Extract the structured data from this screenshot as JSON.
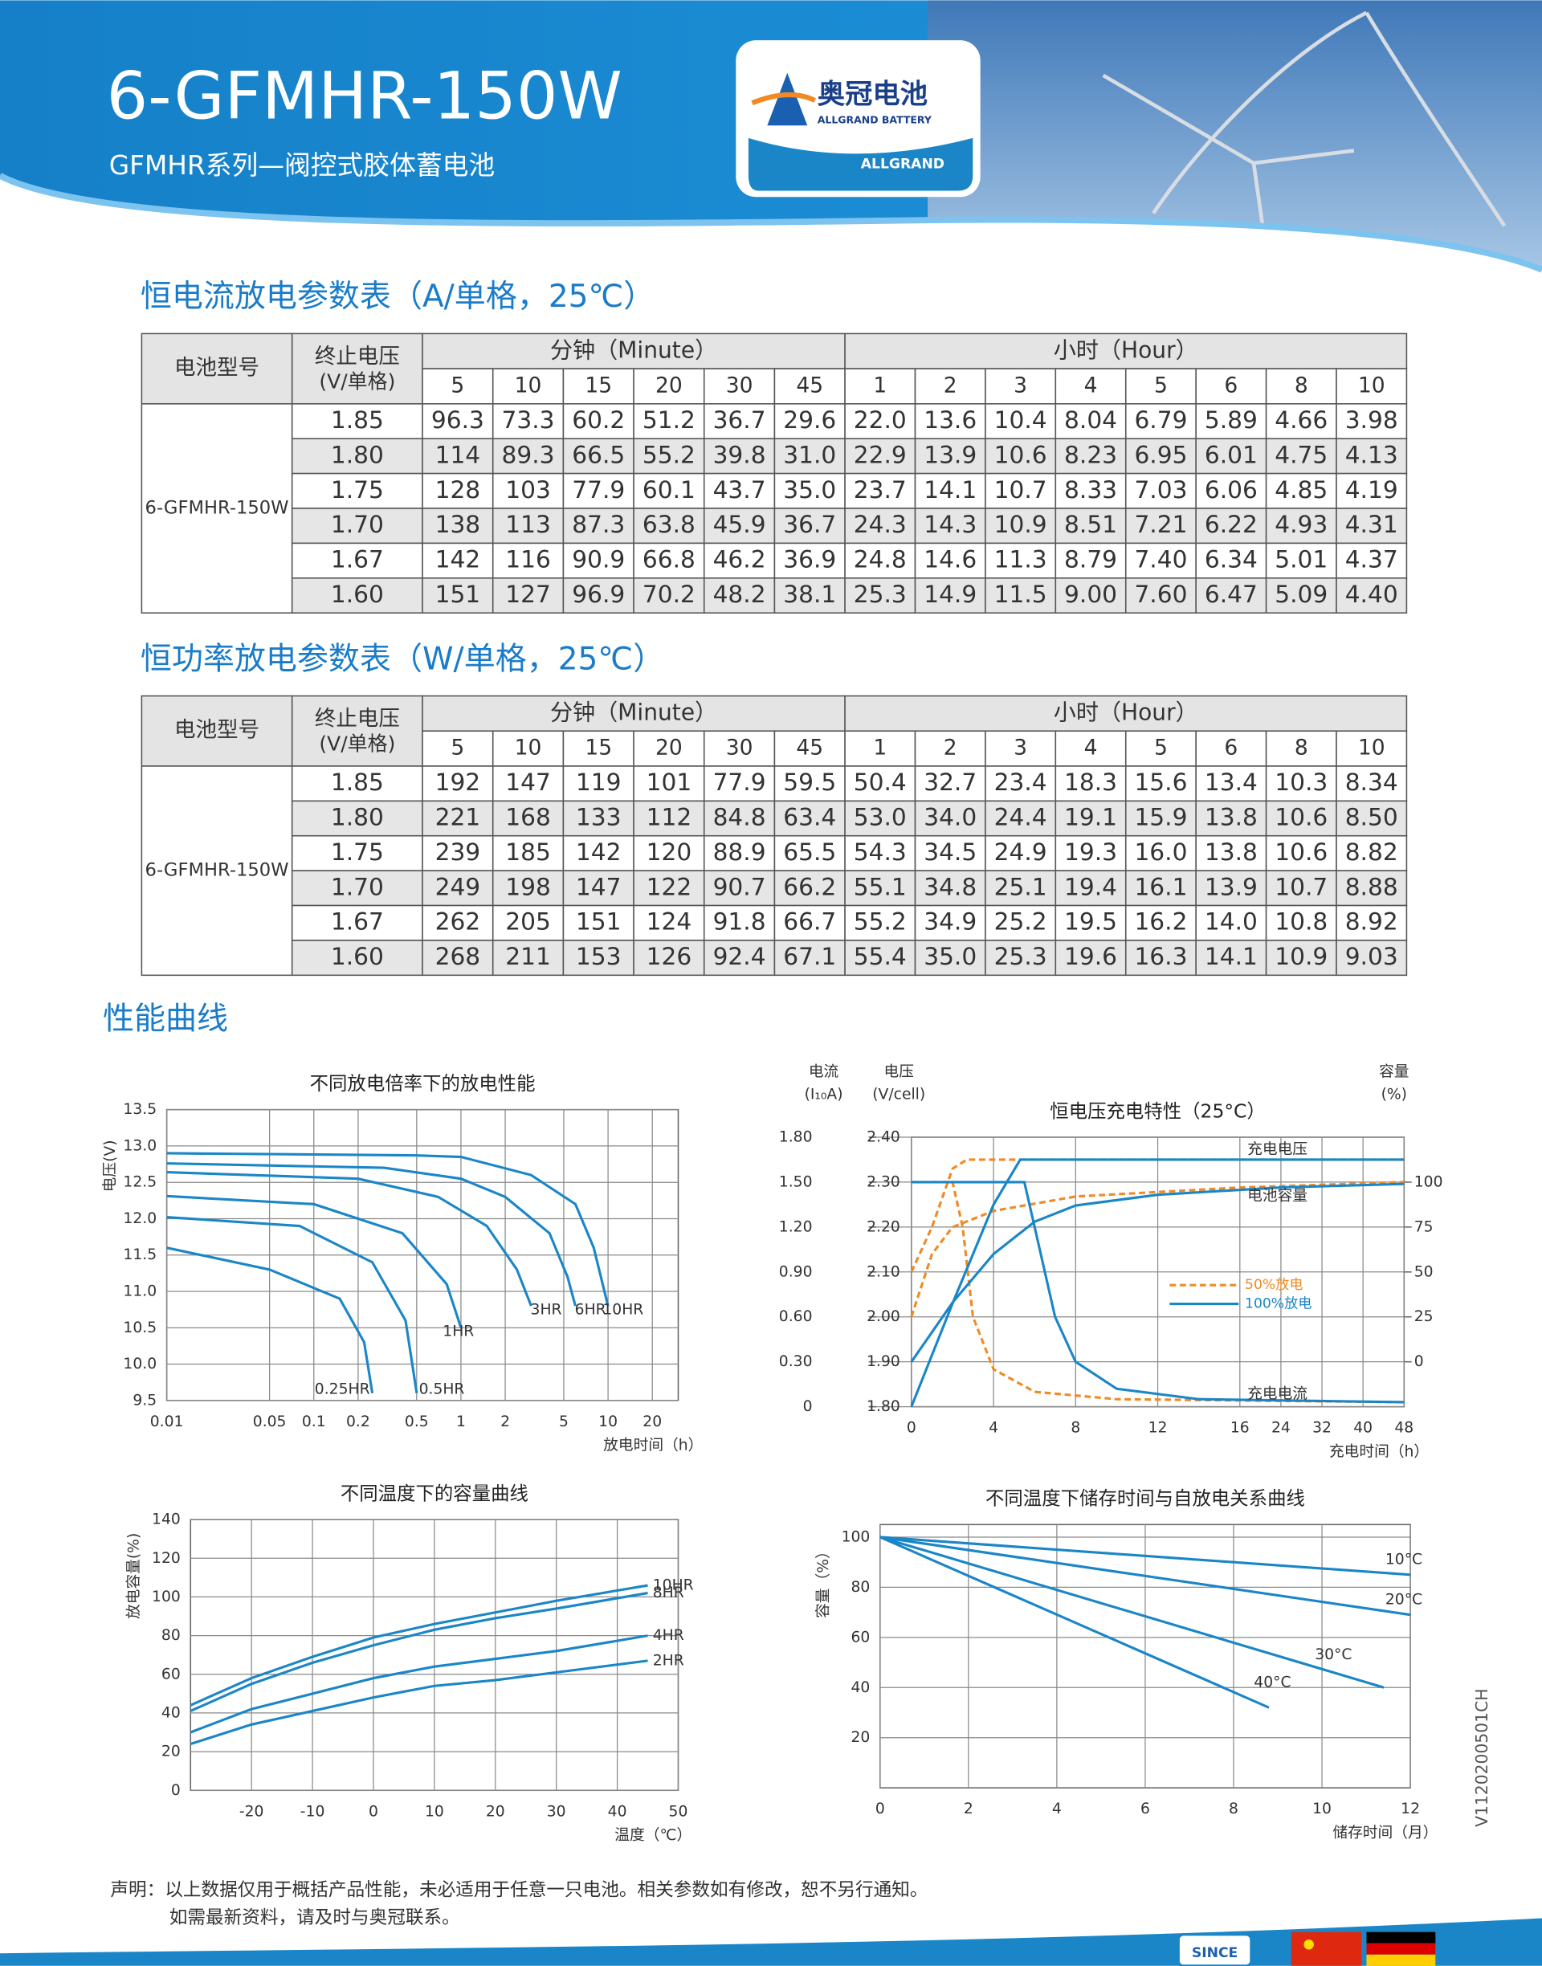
{
  "header": {
    "title": "6-GFMHR-150W",
    "subtitle": "GFMHR系列—阀控式胶体蓄电池",
    "logo_cn": "奥冠电池",
    "logo_en": "ALLGRAND BATTERY",
    "logo_badge": "ALLGRAND"
  },
  "tables": [
    {
      "title": "恒电流放电参数表（A/单格，25℃）",
      "model_header": "电池型号",
      "voltage_header": [
        "终止电压",
        "(V/单格)"
      ],
      "minute_header": "分钟（Minute）",
      "hour_header": "小时（Hour）",
      "minute_cols": [
        5,
        10,
        15,
        20,
        30,
        45
      ],
      "hour_cols": [
        1,
        2,
        3,
        4,
        5,
        6,
        8,
        10
      ],
      "model": "6-GFMHR-150W",
      "rows": [
        {
          "voltage": "1.85",
          "values": [
            "96.3",
            "73.3",
            "60.2",
            "51.2",
            "36.7",
            "29.6",
            "22.0",
            "13.6",
            "10.4",
            "8.04",
            "6.79",
            "5.89",
            "4.66",
            "3.98"
          ]
        },
        {
          "voltage": "1.80",
          "values": [
            "114",
            "89.3",
            "66.5",
            "55.2",
            "39.8",
            "31.0",
            "22.9",
            "13.9",
            "10.6",
            "8.23",
            "6.95",
            "6.01",
            "4.75",
            "4.13"
          ]
        },
        {
          "voltage": "1.75",
          "values": [
            "128",
            "103",
            "77.9",
            "60.1",
            "43.7",
            "35.0",
            "23.7",
            "14.1",
            "10.7",
            "8.33",
            "7.03",
            "6.06",
            "4.85",
            "4.19"
          ]
        },
        {
          "voltage": "1.70",
          "values": [
            "138",
            "113",
            "87.3",
            "63.8",
            "45.9",
            "36.7",
            "24.3",
            "14.3",
            "10.9",
            "8.51",
            "7.21",
            "6.22",
            "4.93",
            "4.31"
          ]
        },
        {
          "voltage": "1.67",
          "values": [
            "142",
            "116",
            "90.9",
            "66.8",
            "46.2",
            "36.9",
            "24.8",
            "14.6",
            "11.3",
            "8.79",
            "7.40",
            "6.34",
            "5.01",
            "4.37"
          ]
        },
        {
          "voltage": "1.60",
          "values": [
            "151",
            "127",
            "96.9",
            "70.2",
            "48.2",
            "38.1",
            "25.3",
            "14.9",
            "11.5",
            "9.00",
            "7.60",
            "6.47",
            "5.09",
            "4.40"
          ]
        }
      ]
    },
    {
      "title": "恒功率放电参数表（W/单格，25℃）",
      "model_header": "电池型号",
      "voltage_header": [
        "终止电压",
        "(V/单格)"
      ],
      "minute_header": "分钟（Minute）",
      "hour_header": "小时（Hour）",
      "minute_cols": [
        5,
        10,
        15,
        20,
        30,
        45
      ],
      "hour_cols": [
        1,
        2,
        3,
        4,
        5,
        6,
        8,
        10
      ],
      "model": "6-GFMHR-150W",
      "rows": [
        {
          "voltage": "1.85",
          "values": [
            "192",
            "147",
            "119",
            "101",
            "77.9",
            "59.5",
            "50.4",
            "32.7",
            "23.4",
            "18.3",
            "15.6",
            "13.4",
            "10.3",
            "8.34"
          ]
        },
        {
          "voltage": "1.80",
          "values": [
            "221",
            "168",
            "133",
            "112",
            "84.8",
            "63.4",
            "53.0",
            "34.0",
            "24.4",
            "19.1",
            "15.9",
            "13.8",
            "10.6",
            "8.50"
          ]
        },
        {
          "voltage": "1.75",
          "values": [
            "239",
            "185",
            "142",
            "120",
            "88.9",
            "65.5",
            "54.3",
            "34.5",
            "24.9",
            "19.3",
            "16.0",
            "13.8",
            "10.6",
            "8.82"
          ]
        },
        {
          "voltage": "1.70",
          "values": [
            "249",
            "198",
            "147",
            "122",
            "90.7",
            "66.2",
            "55.1",
            "34.8",
            "25.1",
            "19.4",
            "16.1",
            "13.9",
            "10.7",
            "8.88"
          ]
        },
        {
          "voltage": "1.67",
          "values": [
            "262",
            "205",
            "151",
            "124",
            "91.8",
            "66.7",
            "55.2",
            "34.9",
            "25.2",
            "19.5",
            "16.2",
            "14.0",
            "10.8",
            "8.92"
          ]
        },
        {
          "voltage": "1.60",
          "values": [
            "268",
            "211",
            "153",
            "126",
            "92.4",
            "67.1",
            "55.4",
            "35.0",
            "25.3",
            "19.6",
            "16.3",
            "14.1",
            "10.9",
            "9.03"
          ]
        }
      ]
    }
  ],
  "section_title": "性能曲线",
  "chart_data": [
    {
      "type": "line",
      "title": "不同放电倍率下的放电性能",
      "xlabel": "放电时间（h）",
      "ylabel": "电压(V)",
      "xscale": "log",
      "xlim": [
        0.01,
        30
      ],
      "xticks": [
        0.01,
        0.05,
        0.1,
        0.2,
        0.5,
        1,
        2,
        5,
        10,
        20
      ],
      "ylim": [
        9.5,
        13.5
      ],
      "yticks": [
        9.5,
        {
          "value": 10,
          "label": "10.0"
        },
        10.5,
        {
          "value": 11,
          "label": "11.0"
        },
        11.5,
        {
          "value": 12,
          "label": "12.0"
        },
        12.5,
        {
          "value": 13,
          "label": "13.0"
        },
        13.5
      ],
      "grid": true,
      "series": [
        {
          "name": "0.25HR",
          "color": "#1a86c8",
          "x": [
            0.01,
            0.05,
            0.15,
            0.22,
            0.25
          ],
          "values": [
            11.6,
            11.3,
            10.9,
            10.3,
            9.6
          ]
        },
        {
          "name": "0.5HR",
          "color": "#1a86c8",
          "x": [
            0.01,
            0.08,
            0.25,
            0.42,
            0.5
          ],
          "values": [
            12.02,
            11.9,
            11.4,
            10.6,
            9.6
          ]
        },
        {
          "name": "1HR",
          "color": "#1a86c8",
          "x": [
            0.01,
            0.1,
            0.4,
            0.8,
            1
          ],
          "values": [
            12.31,
            12.2,
            11.8,
            11.1,
            10.5
          ]
        },
        {
          "name": "3HR",
          "color": "#1a86c8",
          "x": [
            0.01,
            0.2,
            0.7,
            1.5,
            2.4,
            3
          ],
          "values": [
            12.64,
            12.55,
            12.3,
            11.9,
            11.3,
            10.8
          ]
        },
        {
          "name": "6HR",
          "color": "#1a86c8",
          "x": [
            0.01,
            0.3,
            1,
            2,
            4,
            5.3,
            6
          ],
          "values": [
            12.76,
            12.7,
            12.55,
            12.3,
            11.8,
            11.2,
            10.8
          ]
        },
        {
          "name": "10HR",
          "color": "#1a86c8",
          "x": [
            0.01,
            0.5,
            1,
            3,
            6,
            8,
            10
          ],
          "values": [
            12.9,
            12.87,
            12.85,
            12.6,
            12.2,
            11.6,
            10.8
          ]
        }
      ]
    },
    {
      "type": "line",
      "title": "恒电压充电特性（25°C）",
      "xlabel": "充电时间（h）",
      "ylabel": [
        "电流",
        "(I₁₀A)"
      ],
      "y2label": [
        "电压",
        "(V/cell)"
      ],
      "y3label": [
        "容量",
        "(%)"
      ],
      "xscale": "piecewise",
      "xlim": [
        0,
        48
      ],
      "xticks": [
        0,
        4,
        8,
        12,
        16,
        24,
        32,
        40,
        48
      ],
      "ylim": [
        0,
        1.8
      ],
      "yticks": [
        0,
        {
          "value": 0.3,
          "label": "0.30"
        },
        {
          "value": 0.6,
          "label": "0.60"
        },
        {
          "value": 0.9,
          "label": "0.90"
        },
        {
          "value": 1.2,
          "label": "1.20"
        },
        {
          "value": 1.5,
          "label": "1.50"
        },
        {
          "value": 1.8,
          "label": "1.80"
        }
      ],
      "y2lim": [
        1.8,
        2.4
      ],
      "y2ticks": [
        {
          "value": 1.8,
          "label": "1.80"
        },
        {
          "value": 1.9,
          "label": "1.90"
        },
        {
          "value": 2,
          "label": "2.00"
        },
        {
          "value": 2.1,
          "label": "2.10"
        },
        {
          "value": 2.2,
          "label": "2.20"
        },
        {
          "value": 2.3,
          "label": "2.30"
        },
        {
          "value": 2.4,
          "label": "2.40"
        }
      ],
      "y3lim": [
        -25,
        125
      ],
      "y3ticks": [
        0,
        25,
        50,
        75,
        100
      ],
      "grid": true,
      "annotations": [
        "充电电压",
        "电池容量",
        "充电电流"
      ],
      "series": [
        {
          "name": "50%放电",
          "color": "#f08a24",
          "dash": true,
          "lines": [
            {
              "axis": "y2",
              "x": [
                0,
                1,
                2,
                2.7,
                48
              ],
              "values": [
                2.1,
                2.2,
                2.33,
                2.35,
                2.35
              ]
            },
            {
              "axis": "y",
              "x": [
                0,
                2,
                2.5,
                3,
                4,
                6,
                10,
                48
              ],
              "values": [
                1.5,
                1.5,
                1.2,
                0.6,
                0.25,
                0.1,
                0.05,
                0.03
              ]
            },
            {
              "axis": "y3",
              "x": [
                0,
                1,
                2,
                4,
                8,
                16,
                48
              ],
              "values": [
                25,
                60,
                75,
                84,
                92,
                97,
                100
              ]
            }
          ]
        },
        {
          "name": "100%放电",
          "color": "#1a86c8",
          "dash": false,
          "lines": [
            {
              "axis": "y2",
              "x": [
                0,
                2,
                4,
                5.3,
                48
              ],
              "values": [
                1.8,
                2.03,
                2.25,
                2.35,
                2.35
              ]
            },
            {
              "axis": "y",
              "x": [
                0,
                5.5,
                6,
                7,
                8,
                10,
                14,
                48
              ],
              "values": [
                1.5,
                1.5,
                1.2,
                0.6,
                0.3,
                0.12,
                0.05,
                0.03
              ]
            },
            {
              "axis": "y3",
              "x": [
                0,
                2,
                4,
                6,
                8,
                12,
                24,
                48
              ],
              "values": [
                0,
                33,
                60,
                78,
                87,
                93,
                97,
                99
              ]
            }
          ]
        }
      ]
    },
    {
      "type": "line",
      "title": "不同温度下的容量曲线",
      "xlabel": "温度（℃）",
      "ylabel": "放电容量(%)",
      "xlim": [
        -30,
        50
      ],
      "xticks": [
        -20,
        -10,
        0,
        10,
        20,
        30,
        40,
        50
      ],
      "ylim": [
        0,
        140
      ],
      "yticks": [
        0,
        20,
        40,
        60,
        80,
        100,
        120,
        140
      ],
      "grid": true,
      "series": [
        {
          "name": "10HR",
          "color": "#1a86c8",
          "x": [
            -30,
            -20,
            -10,
            0,
            10,
            20,
            30,
            45
          ],
          "values": [
            44,
            58,
            69,
            79,
            86,
            92,
            98,
            106
          ]
        },
        {
          "name": "8HR",
          "color": "#1a86c8",
          "x": [
            -30,
            -20,
            -10,
            0,
            10,
            20,
            30,
            45
          ],
          "values": [
            41,
            55,
            66,
            75,
            83,
            89,
            94,
            102
          ]
        },
        {
          "name": "4HR",
          "color": "#1a86c8",
          "x": [
            -30,
            -20,
            -10,
            0,
            10,
            20,
            30,
            45
          ],
          "values": [
            30,
            42,
            50,
            58,
            64,
            68,
            72,
            80
          ]
        },
        {
          "name": "2HR",
          "color": "#1a86c8",
          "x": [
            -30,
            -20,
            -10,
            0,
            10,
            20,
            30,
            45
          ],
          "values": [
            24,
            34,
            41,
            48,
            54,
            57,
            61,
            67
          ]
        }
      ]
    },
    {
      "type": "line",
      "title": "不同温度下储存时间与自放电关系曲线",
      "xlabel": "储存时间（月）",
      "ylabel": "容量（%）",
      "xlim": [
        0,
        12
      ],
      "xticks": [
        0,
        2,
        4,
        6,
        8,
        10,
        12
      ],
      "ylim": [
        0,
        105
      ],
      "yticks": [
        20,
        40,
        60,
        80,
        100
      ],
      "grid": true,
      "series": [
        {
          "name": "10°C",
          "color": "#1a86c8",
          "x": [
            0,
            12
          ],
          "values": [
            100,
            85
          ]
        },
        {
          "name": "20°C",
          "color": "#1a86c8",
          "x": [
            0,
            12
          ],
          "values": [
            100,
            69
          ]
        },
        {
          "name": "30°C",
          "color": "#1a86c8",
          "x": [
            0,
            11.4
          ],
          "values": [
            100,
            40
          ]
        },
        {
          "name": "40°C",
          "color": "#1a86c8",
          "x": [
            0,
            8.8
          ],
          "values": [
            100,
            32
          ]
        }
      ]
    }
  ],
  "doc_code": "V1120200501CH",
  "footer": {
    "line1": "声明：以上数据仅用于概括产品性能，未必适用于任意一只电池。相关参数如有修改，恕不另行通知。",
    "line2": "如需最新资料，请及时与奥冠联系。",
    "badge": "SINCE"
  }
}
